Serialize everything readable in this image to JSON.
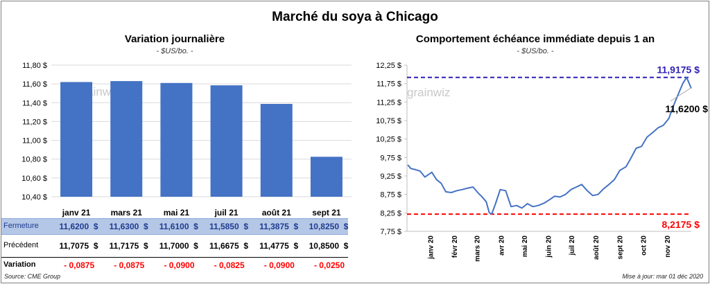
{
  "title": "Marché du soya à Chicago",
  "left_chart": {
    "title": "Variation journalière",
    "subtitle": "- $US/bo. -",
    "watermark": "grainwiz"
  },
  "right_chart": {
    "title": "Comportement  échéance immédiate depuis 1 an",
    "subtitle": "- $US/bo. -",
    "watermark": "grainwiz"
  },
  "table": {
    "rows": [
      {
        "label": "Fermeture",
        "currency": "$",
        "values": [
          "11,6200",
          "11,6300",
          "11,6100",
          "11,5850",
          "11,3875",
          "10,8250"
        ]
      },
      {
        "label": "Précédent",
        "currency": "$",
        "values": [
          "11,7075",
          "11,7175",
          "11,7000",
          "11,6675",
          "11,4775",
          "10,8500"
        ]
      },
      {
        "label": "Variation",
        "currency": "",
        "values": [
          "- 0,0875",
          "- 0,0875",
          "- 0,0900",
          "- 0,0825",
          "- 0,0900",
          "- 0,0250"
        ]
      }
    ]
  },
  "footer": {
    "source": "Source: CME Group",
    "updated": "Mise à jour: mar 01 déc 2020"
  },
  "colors": {
    "bar": "#4472c4",
    "line": "#4472c4",
    "high": "#2e1fb5",
    "low": "#ff0000",
    "table_highlight": "#b4c7e7"
  },
  "chart_data": [
    {
      "type": "bar",
      "categories": [
        "janv 21",
        "mars 21",
        "mai 21",
        "juil 21",
        "août 21",
        "sept 21"
      ],
      "values": [
        11.62,
        11.63,
        11.61,
        11.585,
        11.3875,
        10.825
      ],
      "ylim": [
        10.4,
        11.8
      ],
      "yticks": [
        10.4,
        10.6,
        10.8,
        11.0,
        11.2,
        11.4,
        11.6,
        11.8
      ],
      "ytick_labels": [
        "10,40 $",
        "10,60 $",
        "10,80 $",
        "11,00 $",
        "11,20 $",
        "11,40 $",
        "11,60 $",
        "11,80 $"
      ],
      "grid": true,
      "legend": "none"
    },
    {
      "type": "line",
      "x": [
        "2019-12-02",
        "2019-12-06",
        "2019-12-12",
        "2019-12-18",
        "2019-12-24",
        "2020-01-02",
        "2020-01-08",
        "2020-01-14",
        "2020-01-20",
        "2020-01-27",
        "2020-02-03",
        "2020-02-10",
        "2020-02-17",
        "2020-02-24",
        "2020-03-02",
        "2020-03-06",
        "2020-03-12",
        "2020-03-16",
        "2020-03-19",
        "2020-03-24",
        "2020-03-30",
        "2020-04-06",
        "2020-04-13",
        "2020-04-20",
        "2020-04-27",
        "2020-05-04",
        "2020-05-11",
        "2020-05-18",
        "2020-05-26",
        "2020-06-01",
        "2020-06-08",
        "2020-06-15",
        "2020-06-22",
        "2020-06-29",
        "2020-07-06",
        "2020-07-13",
        "2020-07-20",
        "2020-07-27",
        "2020-08-03",
        "2020-08-10",
        "2020-08-17",
        "2020-08-24",
        "2020-08-31",
        "2020-09-08",
        "2020-09-14",
        "2020-09-21",
        "2020-09-28",
        "2020-10-05",
        "2020-10-12",
        "2020-10-19",
        "2020-10-26",
        "2020-11-02",
        "2020-11-09",
        "2020-11-16",
        "2020-11-20",
        "2020-11-25",
        "2020-12-01"
      ],
      "y": [
        9.55,
        9.45,
        9.42,
        9.38,
        9.22,
        9.35,
        9.15,
        9.05,
        8.82,
        8.8,
        8.85,
        8.88,
        8.92,
        8.95,
        8.78,
        8.7,
        8.55,
        8.25,
        8.2175,
        8.5,
        8.88,
        8.85,
        8.42,
        8.45,
        8.38,
        8.5,
        8.42,
        8.45,
        8.52,
        8.6,
        8.7,
        8.68,
        8.75,
        8.88,
        8.95,
        9.02,
        8.85,
        8.72,
        8.75,
        8.9,
        9.02,
        9.15,
        9.4,
        9.5,
        9.72,
        10.0,
        10.05,
        10.3,
        10.42,
        10.55,
        10.62,
        10.8,
        11.2,
        11.55,
        11.75,
        11.9175,
        11.62
      ],
      "xtick_labels": [
        "janv 20",
        "févr 20",
        "mars 20",
        "avr 20",
        "mai 20",
        "juin 20",
        "juil 20",
        "août 20",
        "sept 20",
        "oct 20",
        "nov 20"
      ],
      "ylim": [
        7.75,
        12.25
      ],
      "yticks": [
        7.75,
        8.25,
        8.75,
        9.25,
        9.75,
        10.25,
        10.75,
        11.25,
        11.75,
        12.25
      ],
      "ytick_labels": [
        "7,75 $",
        "8,25 $",
        "8,75 $",
        "9,25 $",
        "9,75 $",
        "10,25 $",
        "10,75 $",
        "11,25 $",
        "11,75 $",
        "12,25 $"
      ],
      "high": 11.9175,
      "high_label": "11,9175  $",
      "low": 8.2175,
      "low_label": "8,2175  $",
      "last": 11.62,
      "last_label": "11,6200 $",
      "grid": false,
      "legend": "none"
    }
  ]
}
